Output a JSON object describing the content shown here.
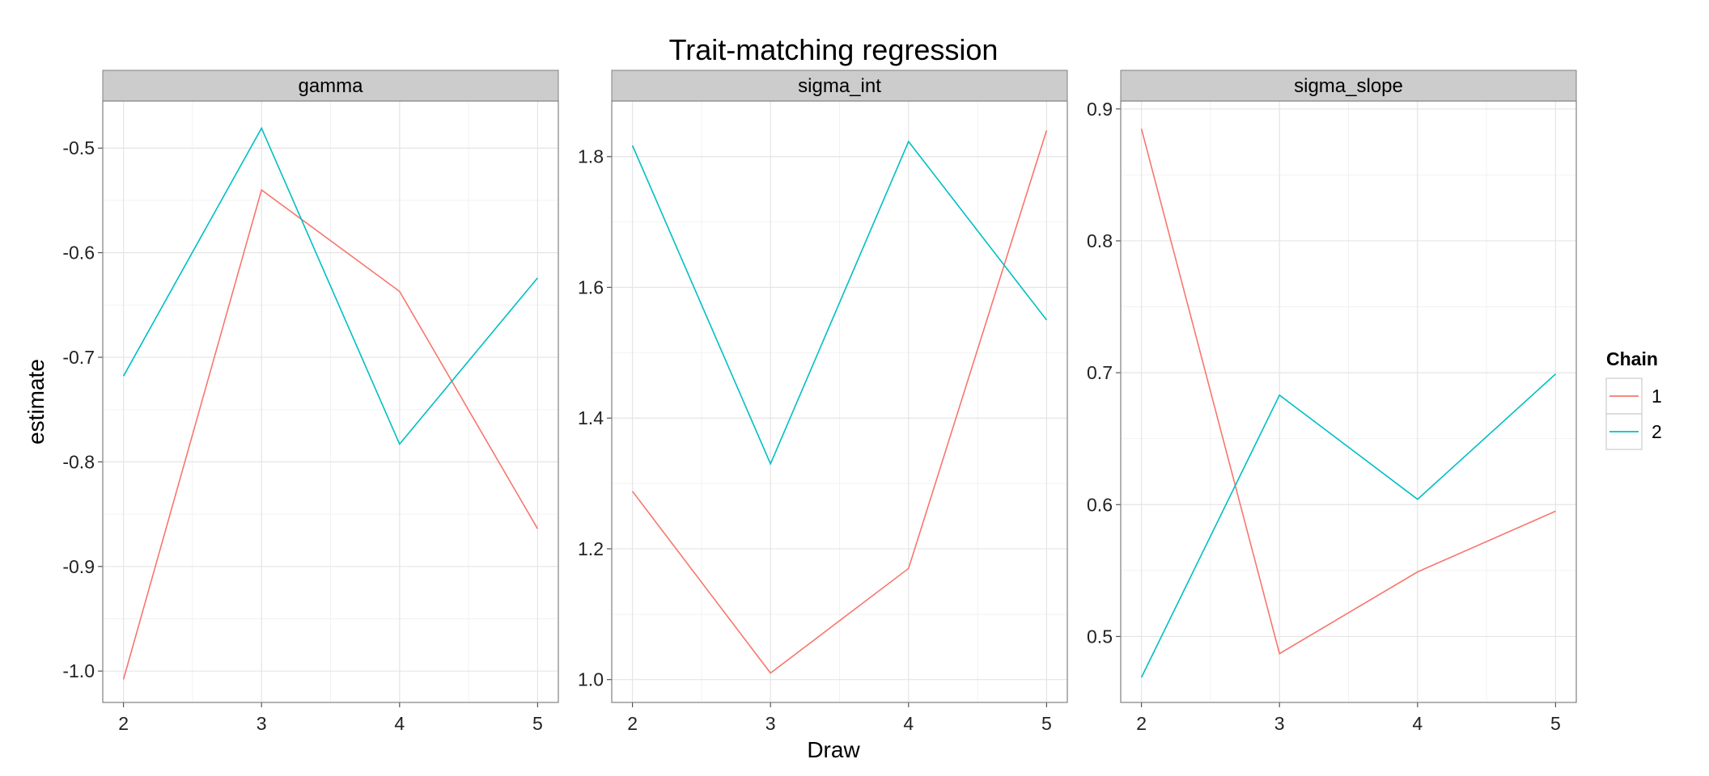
{
  "chart_data": {
    "type": "line",
    "title": "Trait-matching regression",
    "xlabel": "Draw",
    "ylabel": "estimate",
    "x": [
      2,
      3,
      4,
      5
    ],
    "legend": {
      "title": "Chain",
      "position": "right",
      "entries": [
        {
          "label": "1",
          "color": "#F8766D"
        },
        {
          "label": "2",
          "color": "#00BFC4"
        }
      ]
    },
    "grid": true,
    "facets": [
      {
        "name": "gamma",
        "ylim": [
          -1.03,
          -0.455
        ],
        "yticks": [
          -1.0,
          -0.9,
          -0.8,
          -0.7,
          -0.6,
          -0.5
        ],
        "ytick_labels": [
          "-1.0",
          "-0.9",
          "-0.8",
          "-0.7",
          "-0.6",
          "-0.5"
        ],
        "series": [
          {
            "name": "1",
            "values": [
              -1.008,
              -0.54,
              -0.637,
              -0.864
            ]
          },
          {
            "name": "2",
            "values": [
              -0.718,
              -0.481,
              -0.783,
              -0.624
            ]
          }
        ]
      },
      {
        "name": "sigma_int",
        "ylim": [
          0.965,
          1.885
        ],
        "yticks": [
          1.0,
          1.2,
          1.4,
          1.6,
          1.8
        ],
        "ytick_labels": [
          "1.0",
          "1.2",
          "1.4",
          "1.6",
          "1.8"
        ],
        "series": [
          {
            "name": "1",
            "values": [
              1.288,
              1.01,
              1.17,
              1.84
            ]
          },
          {
            "name": "2",
            "values": [
              1.817,
              1.33,
              1.823,
              1.55
            ]
          }
        ]
      },
      {
        "name": "sigma_slope",
        "ylim": [
          0.45,
          0.906
        ],
        "yticks": [
          0.5,
          0.6,
          0.7,
          0.8,
          0.9
        ],
        "ytick_labels": [
          "0.5",
          "0.6",
          "0.7",
          "0.8",
          "0.9"
        ],
        "series": [
          {
            "name": "1",
            "values": [
              0.885,
              0.487,
              0.549,
              0.595
            ]
          },
          {
            "name": "2",
            "values": [
              0.469,
              0.683,
              0.604,
              0.699
            ]
          }
        ]
      }
    ]
  }
}
